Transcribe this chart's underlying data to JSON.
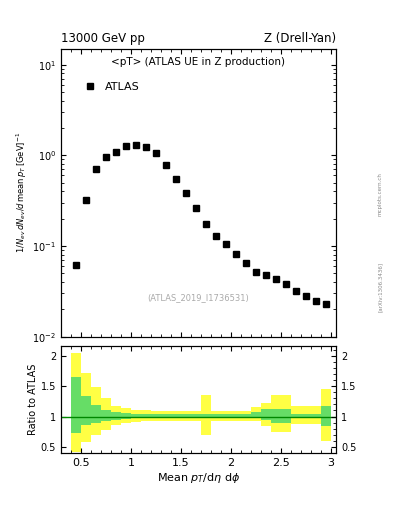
{
  "title_top": "13000 GeV pp",
  "title_right": "Z (Drell-Yan)",
  "main_label": "<pT> (ATLAS UE in Z production)",
  "legend_label": "ATLAS",
  "watermark": "(ATLAS_2019_I1736531)",
  "arxiv": "[arXiv:1306.3436]",
  "mcplots": "mcplots.cern.ch",
  "ylabel_ratio": "Ratio to ATLAS",
  "xlabel": "Mean $p_T$/d$\\eta$ d$\\phi$",
  "data_x": [
    0.45,
    0.55,
    0.65,
    0.75,
    0.85,
    0.95,
    1.05,
    1.15,
    1.25,
    1.35,
    1.45,
    1.55,
    1.65,
    1.75,
    1.85,
    1.95,
    2.05,
    2.15,
    2.25,
    2.35,
    2.45,
    2.55,
    2.65,
    2.75,
    2.85,
    2.95
  ],
  "data_y": [
    0.062,
    0.32,
    0.7,
    0.95,
    1.1,
    1.25,
    1.3,
    1.22,
    1.05,
    0.78,
    0.55,
    0.38,
    0.26,
    0.175,
    0.13,
    0.105,
    0.082,
    0.065,
    0.052,
    0.048,
    0.043,
    0.038,
    0.032,
    0.028,
    0.025,
    0.023
  ],
  "xlim": [
    0.3,
    3.05
  ],
  "ylim_main": [
    0.01,
    15.0
  ],
  "ylim_ratio": [
    0.4,
    2.15
  ],
  "ratio_yticks": [
    0.5,
    1.0,
    1.5,
    2.0
  ],
  "marker_color": "#000000",
  "marker_size": 5,
  "green_color": "#66dd66",
  "yellow_color": "#ffff44",
  "ratio_line_color": "#008800",
  "background_color": "#ffffff",
  "bin_edges": [
    0.4,
    0.5,
    0.6,
    0.7,
    0.8,
    0.9,
    1.0,
    1.1,
    1.2,
    1.3,
    1.4,
    1.5,
    1.6,
    1.7,
    1.8,
    1.9,
    2.0,
    2.1,
    2.2,
    2.3,
    2.4,
    2.5,
    2.6,
    2.7,
    2.8,
    2.9,
    3.0
  ],
  "yellow_lo": [
    0.42,
    0.58,
    0.7,
    0.78,
    0.86,
    0.89,
    0.91,
    0.92,
    0.92,
    0.92,
    0.92,
    0.92,
    0.92,
    0.7,
    0.92,
    0.92,
    0.92,
    0.92,
    0.92,
    0.84,
    0.74,
    0.74,
    0.87,
    0.87,
    0.87,
    0.6
  ],
  "yellow_hi": [
    2.05,
    1.72,
    1.48,
    1.3,
    1.18,
    1.14,
    1.11,
    1.1,
    1.09,
    1.09,
    1.09,
    1.09,
    1.09,
    1.35,
    1.09,
    1.09,
    1.09,
    1.09,
    1.16,
    1.22,
    1.36,
    1.36,
    1.17,
    1.17,
    1.17,
    1.45
  ],
  "green_lo": [
    0.73,
    0.86,
    0.9,
    0.93,
    0.95,
    0.96,
    0.97,
    0.97,
    0.97,
    0.97,
    0.97,
    0.97,
    0.97,
    0.97,
    0.97,
    0.97,
    0.97,
    0.97,
    0.97,
    0.94,
    0.9,
    0.9,
    0.97,
    0.97,
    0.97,
    0.84
  ],
  "green_hi": [
    1.65,
    1.33,
    1.19,
    1.11,
    1.07,
    1.06,
    1.05,
    1.04,
    1.04,
    1.04,
    1.04,
    1.04,
    1.04,
    1.04,
    1.04,
    1.04,
    1.04,
    1.04,
    1.07,
    1.12,
    1.12,
    1.12,
    1.05,
    1.05,
    1.05,
    1.18
  ]
}
